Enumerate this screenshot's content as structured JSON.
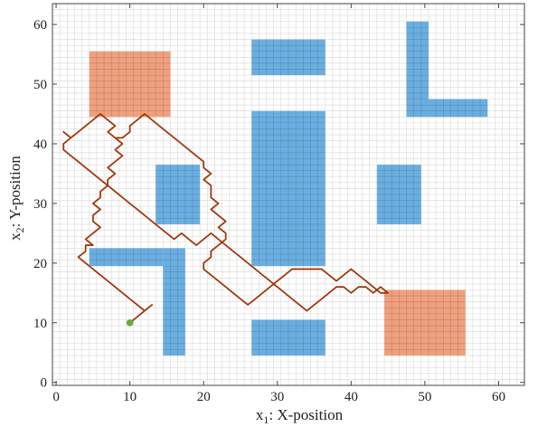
{
  "chart_data": {
    "type": "line",
    "xlabel_main": "x",
    "xlabel_sub": "1",
    "xlabel_rest": ": X-position",
    "ylabel_main": "x",
    "ylabel_sub": "2",
    "ylabel_rest": ": Y-position",
    "xlim": [
      -0.5,
      63.5
    ],
    "ylim": [
      -0.5,
      63.5
    ],
    "xticks": [
      0,
      10,
      20,
      30,
      40,
      50,
      60
    ],
    "yticks": [
      0,
      10,
      20,
      30,
      40,
      50,
      60
    ],
    "grid": true,
    "colors": {
      "obstacle": "#6aaee0",
      "goal_region": "#f0a07e",
      "path": "#a0390f",
      "start": "#6aac3a",
      "grid_minor": "#d8d8d8",
      "axis": "#444444"
    },
    "obstacles": [
      {
        "x": [
          26.5,
          36.5
        ],
        "y": [
          51.5,
          57.5
        ]
      },
      {
        "x": [
          47.5,
          50.5
        ],
        "y": [
          44.5,
          60.5
        ]
      },
      {
        "x": [
          50.5,
          58.5
        ],
        "y": [
          44.5,
          47.5
        ]
      },
      {
        "x": [
          13.5,
          19.5
        ],
        "y": [
          26.5,
          36.5
        ]
      },
      {
        "x": [
          26.5,
          36.5
        ],
        "y": [
          19.5,
          45.5
        ]
      },
      {
        "x": [
          43.5,
          49.5
        ],
        "y": [
          26.5,
          36.5
        ]
      },
      {
        "x": [
          4.5,
          14.5
        ],
        "y": [
          19.5,
          22.5
        ]
      },
      {
        "x": [
          14.5,
          17.5
        ],
        "y": [
          4.5,
          22.5
        ]
      },
      {
        "x": [
          26.5,
          36.5
        ],
        "y": [
          4.5,
          10.5
        ]
      }
    ],
    "goal_regions": [
      {
        "x": [
          4.5,
          15.5
        ],
        "y": [
          44.5,
          55.5
        ]
      },
      {
        "x": [
          44.5,
          55.5
        ],
        "y": [
          4.5,
          15.5
        ]
      }
    ],
    "start_point": {
      "x": 10,
      "y": 10
    },
    "path": [
      [
        10,
        10
      ],
      [
        11,
        11
      ],
      [
        12,
        12
      ],
      [
        13,
        13
      ],
      [
        12,
        12
      ],
      [
        11,
        13
      ],
      [
        10,
        14
      ],
      [
        9,
        15
      ],
      [
        8,
        16
      ],
      [
        7,
        17
      ],
      [
        6,
        18
      ],
      [
        5,
        19
      ],
      [
        4,
        20
      ],
      [
        3,
        21
      ],
      [
        4,
        22
      ],
      [
        4,
        23
      ],
      [
        5,
        23
      ],
      [
        4,
        24
      ],
      [
        5,
        25
      ],
      [
        6,
        26
      ],
      [
        5,
        27
      ],
      [
        5,
        28
      ],
      [
        6,
        29
      ],
      [
        5,
        30
      ],
      [
        6,
        31
      ],
      [
        6,
        32
      ],
      [
        7,
        33
      ],
      [
        7,
        34
      ],
      [
        8,
        35
      ],
      [
        7,
        36
      ],
      [
        8,
        37
      ],
      [
        9,
        38
      ],
      [
        8,
        39
      ],
      [
        9,
        40
      ],
      [
        8,
        41
      ],
      [
        7,
        42
      ],
      [
        8,
        43
      ],
      [
        7,
        44
      ],
      [
        6,
        45
      ],
      [
        5,
        44
      ],
      [
        4,
        43
      ],
      [
        3,
        42
      ],
      [
        2,
        41
      ],
      [
        1,
        42
      ],
      [
        2,
        41
      ],
      [
        1,
        40
      ],
      [
        1,
        39
      ],
      [
        2,
        38
      ],
      [
        3,
        37
      ],
      [
        4,
        36
      ],
      [
        5,
        35
      ],
      [
        6,
        34
      ],
      [
        7,
        33
      ],
      [
        8,
        32
      ],
      [
        9,
        31
      ],
      [
        10,
        30
      ],
      [
        11,
        29
      ],
      [
        12,
        28
      ],
      [
        13,
        27
      ],
      [
        14,
        26
      ],
      [
        15,
        25
      ],
      [
        16,
        24
      ],
      [
        17,
        25
      ],
      [
        18,
        24
      ],
      [
        19,
        23
      ],
      [
        20,
        24
      ],
      [
        21,
        25
      ],
      [
        22,
        24
      ],
      [
        23,
        23
      ],
      [
        24,
        22
      ],
      [
        25,
        21
      ],
      [
        26,
        20
      ],
      [
        27,
        19
      ],
      [
        28,
        18
      ],
      [
        29,
        17
      ],
      [
        30,
        16
      ],
      [
        31,
        15
      ],
      [
        32,
        14
      ],
      [
        33,
        13
      ],
      [
        34,
        12
      ],
      [
        35,
        13
      ],
      [
        36,
        14
      ],
      [
        37,
        15
      ],
      [
        38,
        16
      ],
      [
        39,
        16
      ],
      [
        40,
        15
      ],
      [
        41,
        16
      ],
      [
        42,
        16
      ],
      [
        43,
        15
      ],
      [
        44,
        16
      ],
      [
        45,
        15
      ],
      [
        44,
        15
      ],
      [
        43,
        16
      ],
      [
        42,
        17
      ],
      [
        41,
        18
      ],
      [
        40,
        19
      ],
      [
        39,
        18
      ],
      [
        38,
        17
      ],
      [
        37,
        18
      ],
      [
        36,
        19
      ],
      [
        35,
        19
      ],
      [
        34,
        19
      ],
      [
        33,
        19
      ],
      [
        32,
        19
      ],
      [
        31,
        18
      ],
      [
        30,
        17
      ],
      [
        29,
        16
      ],
      [
        28,
        15
      ],
      [
        27,
        14
      ],
      [
        26,
        13
      ],
      [
        25,
        14
      ],
      [
        24,
        15
      ],
      [
        23,
        16
      ],
      [
        22,
        17
      ],
      [
        21,
        18
      ],
      [
        20,
        19
      ],
      [
        20,
        20
      ],
      [
        21,
        21
      ],
      [
        21,
        22
      ],
      [
        22,
        23
      ],
      [
        23,
        24
      ],
      [
        23,
        25
      ],
      [
        22,
        26
      ],
      [
        23,
        27
      ],
      [
        22,
        28
      ],
      [
        21,
        29
      ],
      [
        22,
        30
      ],
      [
        21,
        31
      ],
      [
        21,
        32
      ],
      [
        21,
        33
      ],
      [
        20,
        34
      ],
      [
        21,
        35
      ],
      [
        20,
        36
      ],
      [
        20,
        37
      ],
      [
        19,
        38
      ],
      [
        18,
        39
      ],
      [
        17,
        40
      ],
      [
        16,
        41
      ],
      [
        15,
        42
      ],
      [
        14,
        43
      ],
      [
        13,
        44
      ],
      [
        12,
        45
      ],
      [
        11,
        44
      ],
      [
        10,
        43
      ],
      [
        10,
        42
      ],
      [
        9,
        41
      ],
      [
        8,
        41
      ]
    ]
  }
}
